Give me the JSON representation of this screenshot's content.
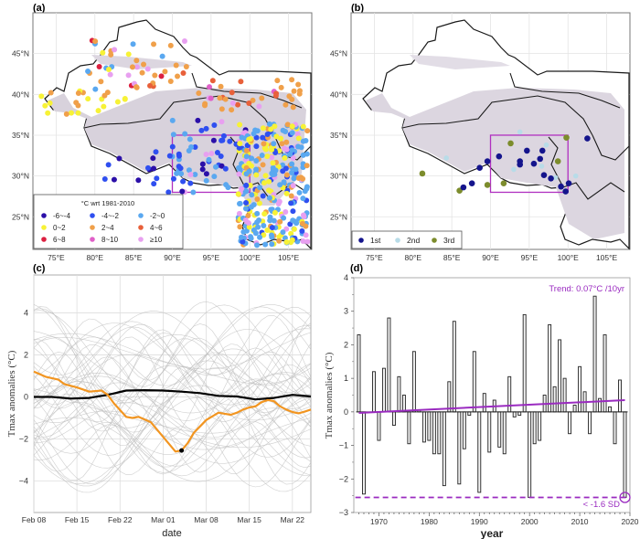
{
  "chart_data": [
    {
      "panel": "(a)",
      "type": "scatter",
      "subtype": "map",
      "xlabel": "",
      "ylabel": "",
      "x_ticks": [
        "75°E",
        "80°E",
        "85°E",
        "90°E",
        "95°E",
        "100°E",
        "105°E"
      ],
      "y_ticks": [
        "45°N",
        "40°N",
        "35°N",
        "30°N",
        "25°N"
      ],
      "xlim": [
        72,
        108
      ],
      "ylim": [
        21,
        50
      ],
      "box_region": {
        "lon": [
          90,
          100
        ],
        "lat": [
          28,
          35
        ]
      },
      "legend": {
        "title": "°C wrt 1981-2010",
        "placement": "bottom-left",
        "entries": [
          {
            "label": "-6~-4",
            "color": "#2b0fa8"
          },
          {
            "label": "-4~-2",
            "color": "#2f4ff0"
          },
          {
            "label": "-2~0",
            "color": "#5aa8f0"
          },
          {
            "label": "0~2",
            "color": "#f7f236"
          },
          {
            "label": "2~4",
            "color": "#f0a04a"
          },
          {
            "label": "4~6",
            "color": "#e8603a"
          },
          {
            "label": "6~8",
            "color": "#dc2040"
          },
          {
            "label": "8~10",
            "color": "#e060c8"
          },
          {
            "label": "≥10",
            "color": "#e8a0f0"
          }
        ]
      }
    },
    {
      "panel": "(b)",
      "type": "scatter",
      "subtype": "map",
      "x_ticks": [
        "75°E",
        "80°E",
        "85°E",
        "90°E",
        "95°E",
        "100°E",
        "105°E"
      ],
      "y_ticks": [
        "45°N",
        "40°N",
        "35°N",
        "30°N",
        "25°N"
      ],
      "xlim": [
        72,
        108
      ],
      "ylim": [
        21,
        50
      ],
      "box_region": {
        "lon": [
          90,
          100
        ],
        "lat": [
          28,
          35
        ]
      },
      "legend": {
        "placement": "bottom-left",
        "entries": [
          {
            "label": "1st",
            "color": "#14148c"
          },
          {
            "label": "2nd",
            "color": "#b8dce8"
          },
          {
            "label": "3rd",
            "color": "#7c8c2c"
          }
        ]
      },
      "points": [
        {
          "rank": "1st",
          "lon": 86.5,
          "lat": 28.6
        },
        {
          "rank": "1st",
          "lon": 87.6,
          "lat": 29.1
        },
        {
          "rank": "1st",
          "lon": 88.6,
          "lat": 31.0
        },
        {
          "rank": "1st",
          "lon": 89.6,
          "lat": 31.8
        },
        {
          "rank": "1st",
          "lon": 91.1,
          "lat": 32.4
        },
        {
          "rank": "1st",
          "lon": 93.8,
          "lat": 31.8
        },
        {
          "rank": "1st",
          "lon": 93.8,
          "lat": 31.4
        },
        {
          "rank": "1st",
          "lon": 94.7,
          "lat": 33.1
        },
        {
          "rank": "1st",
          "lon": 95.6,
          "lat": 31.5
        },
        {
          "rank": "1st",
          "lon": 96.4,
          "lat": 32.1
        },
        {
          "rank": "1st",
          "lon": 96.7,
          "lat": 33.1
        },
        {
          "rank": "1st",
          "lon": 96.9,
          "lat": 30.1
        },
        {
          "rank": "1st",
          "lon": 97.8,
          "lat": 29.7
        },
        {
          "rank": "1st",
          "lon": 99.1,
          "lat": 28.7
        },
        {
          "rank": "1st",
          "lon": 99.7,
          "lat": 28.1
        },
        {
          "rank": "1st",
          "lon": 100.1,
          "lat": 29.1
        },
        {
          "rank": "1st",
          "lon": 102.5,
          "lat": 34.6
        },
        {
          "rank": "2nd",
          "lon": 84.3,
          "lat": 32.2
        },
        {
          "rank": "2nd",
          "lon": 93.0,
          "lat": 30.8
        },
        {
          "rank": "2nd",
          "lon": 96.6,
          "lat": 31.2
        },
        {
          "rank": "2nd",
          "lon": 93.8,
          "lat": 35.4
        },
        {
          "rank": "2nd",
          "lon": 97.2,
          "lat": 33.8
        },
        {
          "rank": "2nd",
          "lon": 98.4,
          "lat": 29.8
        },
        {
          "rank": "2nd",
          "lon": 101.0,
          "lat": 30.0
        },
        {
          "rank": "3rd",
          "lon": 81.2,
          "lat": 30.3
        },
        {
          "rank": "3rd",
          "lon": 86.0,
          "lat": 28.2
        },
        {
          "rank": "3rd",
          "lon": 89.6,
          "lat": 28.9
        },
        {
          "rank": "3rd",
          "lon": 91.7,
          "lat": 29.1
        },
        {
          "rank": "3rd",
          "lon": 92.6,
          "lat": 34.0
        },
        {
          "rank": "3rd",
          "lon": 98.7,
          "lat": 31.8
        },
        {
          "rank": "3rd",
          "lon": 99.8,
          "lat": 34.7
        }
      ]
    },
    {
      "panel": "(c)",
      "type": "line",
      "xlabel": "date",
      "ylabel": "Tmax anomalies (°C)",
      "x_ticks": [
        "Feb 08",
        "Feb 15",
        "Feb 22",
        "Mar 01",
        "Mar 08",
        "Mar 15",
        "Mar 22"
      ],
      "y_ticks": [
        4,
        2,
        0,
        -2,
        -4
      ],
      "xlim": [
        0,
        45
      ],
      "ylim": [
        -5.5,
        5.8
      ],
      "grid": true,
      "series": [
        {
          "name": "mean",
          "color": "#000000",
          "x": [
            0,
            3,
            6,
            9,
            12,
            15,
            18,
            21,
            24,
            27,
            30,
            33,
            36,
            39,
            42,
            45
          ],
          "y": [
            0.0,
            0.0,
            -0.08,
            -0.05,
            0.1,
            0.3,
            0.32,
            0.3,
            0.25,
            0.18,
            0.05,
            0.02,
            -0.12,
            -0.05,
            0.1,
            0.02
          ]
        },
        {
          "name": "current year",
          "color": "#f29520",
          "x": [
            0,
            2,
            4,
            5,
            7,
            9,
            11,
            12,
            13,
            15,
            16,
            17,
            19,
            21,
            23,
            24,
            25,
            26,
            28,
            30,
            31,
            32,
            33,
            34,
            35,
            36,
            37,
            38,
            39,
            40,
            41,
            42,
            43,
            44,
            45
          ],
          "y": [
            1.2,
            0.95,
            0.82,
            0.6,
            0.45,
            0.25,
            0.3,
            0.1,
            -0.3,
            -0.95,
            -1.0,
            -0.95,
            -1.2,
            -1.9,
            -2.6,
            -2.55,
            -2.2,
            -1.7,
            -1.1,
            -0.75,
            -0.8,
            -0.85,
            -0.75,
            -0.6,
            -0.5,
            -0.45,
            -0.25,
            -0.15,
            -0.2,
            -0.45,
            -0.6,
            -0.72,
            -0.78,
            -0.7,
            -0.6
          ]
        },
        {
          "name": "minimum marker",
          "color": "#000000",
          "x": [
            24
          ],
          "y": [
            -2.55
          ]
        }
      ]
    },
    {
      "panel": "(d)",
      "type": "bar",
      "xlabel": "year",
      "ylabel": "Tmax anomalies (°C)",
      "x_ticks": [
        1970,
        1980,
        1990,
        2000,
        2010,
        2020
      ],
      "y_ticks": [
        4,
        3,
        2,
        1,
        0,
        -1,
        -2,
        -3
      ],
      "xlim": [
        1965,
        2020
      ],
      "ylim": [
        -3,
        4
      ],
      "years": [
        1966,
        1967,
        1968,
        1969,
        1970,
        1971,
        1972,
        1973,
        1974,
        1975,
        1976,
        1977,
        1978,
        1979,
        1980,
        1981,
        1982,
        1983,
        1984,
        1985,
        1986,
        1987,
        1988,
        1989,
        1990,
        1991,
        1992,
        1993,
        1994,
        1995,
        1996,
        1997,
        1998,
        1999,
        2000,
        2001,
        2002,
        2003,
        2004,
        2005,
        2006,
        2007,
        2008,
        2009,
        2010,
        2011,
        2012,
        2013,
        2014,
        2015,
        2016,
        2017,
        2018,
        2019
      ],
      "values": [
        2.3,
        -2.45,
        0,
        1.2,
        -0.85,
        1.3,
        2.8,
        -0.4,
        1.05,
        0.5,
        -0.95,
        1.8,
        0.05,
        -0.9,
        -0.85,
        -1.25,
        -1.25,
        -2.2,
        0.9,
        2.7,
        -2.15,
        -1.1,
        -0.1,
        1.8,
        -2.4,
        0.55,
        -1.2,
        0.35,
        -1.05,
        -1.25,
        1.05,
        -0.15,
        -0.1,
        2.9,
        -2.55,
        -0.95,
        -0.85,
        0.5,
        2.6,
        0.75,
        2.15,
        1.0,
        -0.65,
        0.2,
        1.35,
        0.6,
        -0.65,
        3.45,
        0.4,
        2.3,
        0.15,
        -0.95,
        0.95,
        -2.55
      ],
      "trend": {
        "label": "Trend: 0.07°C /10yr",
        "color": "#9a2bc0",
        "start": [
          1966,
          -0.03
        ],
        "end": [
          2019,
          0.35
        ]
      },
      "threshold": {
        "label": "< -1.6 SD",
        "value": -2.55,
        "color": "#9a2bc0"
      },
      "highlight_year": 2019
    }
  ],
  "panels": {
    "a": {
      "label": "(a)"
    },
    "b": {
      "label": "(b)"
    },
    "c": {
      "label": "(c)"
    },
    "d": {
      "label": "(d)"
    }
  }
}
